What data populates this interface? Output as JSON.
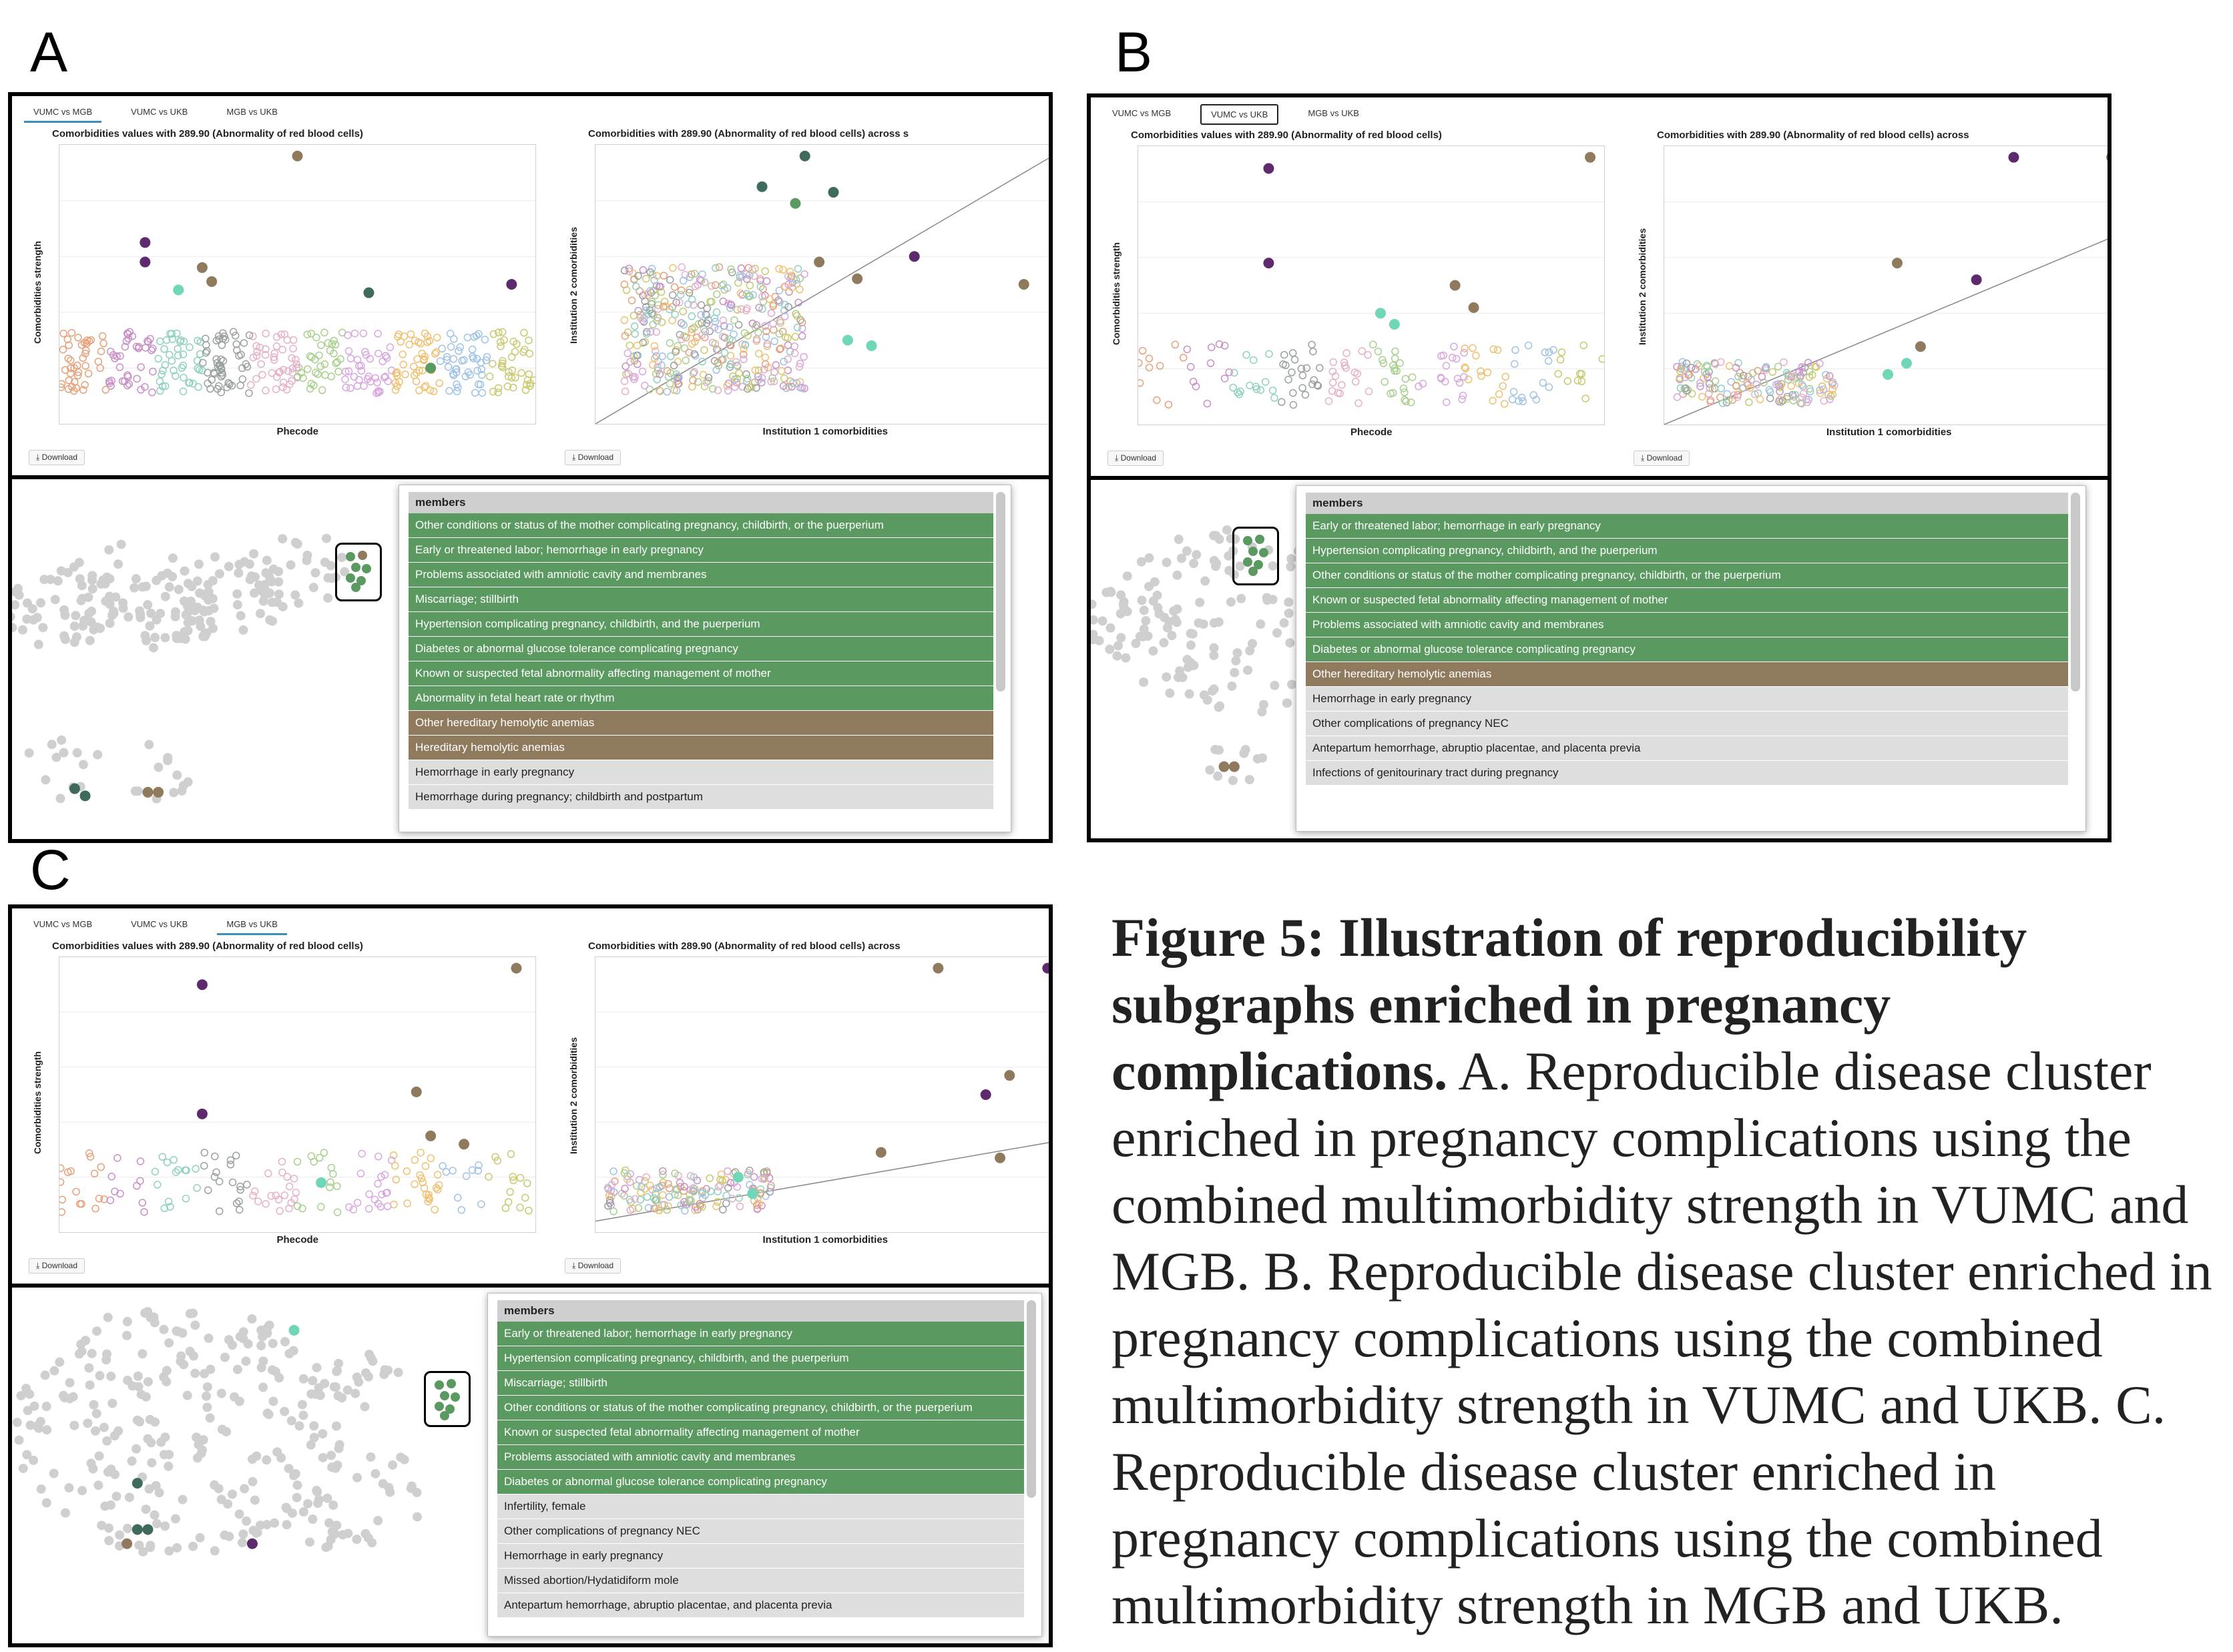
{
  "labels": {
    "a": "A",
    "b": "B",
    "c": "C"
  },
  "download_label": "Download",
  "panels": {
    "a": {
      "tabs": [
        "VUMC vs MGB",
        "VUMC vs UKB",
        "MGB vs UKB"
      ],
      "active_tab": 0,
      "left_title": "Comorbidities values with 289.90 (Abnormality of red blood cells)",
      "right_title": "Comorbidities with 289.90 (Abnormality of red blood cells) across s",
      "left_xlabel": "Phecode",
      "left_ylabel": "Comorbidities strength",
      "right_xlabel": "Institution 1 comorbidities",
      "right_ylabel": "Institution 2 comorbidities",
      "members_header": "members",
      "members": [
        {
          "text": "Other conditions or status of the mother complicating pregnancy, childbirth, or the puerperium",
          "color": "green"
        },
        {
          "text": "Early or threatened labor; hemorrhage in early pregnancy",
          "color": "green"
        },
        {
          "text": "Problems associated with amniotic cavity and membranes",
          "color": "green"
        },
        {
          "text": "Miscarriage; stillbirth",
          "color": "green"
        },
        {
          "text": "Hypertension complicating pregnancy, childbirth, and the puerperium",
          "color": "green"
        },
        {
          "text": "Diabetes or abnormal glucose tolerance complicating pregnancy",
          "color": "green"
        },
        {
          "text": "Known or suspected fetal abnormality affecting management of mother",
          "color": "green"
        },
        {
          "text": "Abnormality in fetal heart rate or rhythm",
          "color": "green"
        },
        {
          "text": "Other hereditary hemolytic anemias",
          "color": "brown"
        },
        {
          "text": "Hereditary hemolytic anemias",
          "color": "brown"
        },
        {
          "text": "Hemorrhage in early pregnancy",
          "color": "gray"
        },
        {
          "text": "Hemorrhage during pregnancy; childbirth and postpartum",
          "color": "gray"
        }
      ]
    },
    "b": {
      "tabs": [
        "VUMC vs MGB",
        "VUMC vs UKB",
        "MGB vs UKB"
      ],
      "active_tab": 1,
      "left_title": "Comorbidities values with 289.90 (Abnormality of red blood cells)",
      "right_title": "Comorbidities with 289.90 (Abnormality of red blood cells) across",
      "left_xlabel": "Phecode",
      "left_ylabel": "Comorbidities strength",
      "right_xlabel": "Institution 1 comorbidities",
      "right_ylabel": "Institution 2 comorbidities",
      "members_header": "members",
      "members": [
        {
          "text": "Early or threatened labor; hemorrhage in early pregnancy",
          "color": "green"
        },
        {
          "text": "Hypertension complicating pregnancy, childbirth, and the puerperium",
          "color": "green"
        },
        {
          "text": "Other conditions or status of the mother complicating pregnancy, childbirth, or the puerperium",
          "color": "green"
        },
        {
          "text": "Known or suspected fetal abnormality affecting management of mother",
          "color": "green"
        },
        {
          "text": "Problems associated with amniotic cavity and membranes",
          "color": "green"
        },
        {
          "text": "Diabetes or abnormal glucose tolerance complicating pregnancy",
          "color": "green"
        },
        {
          "text": "Other hereditary hemolytic anemias",
          "color": "brown"
        },
        {
          "text": "Hemorrhage in early pregnancy",
          "color": "gray"
        },
        {
          "text": "Other complications of pregnancy NEC",
          "color": "gray"
        },
        {
          "text": "Antepartum hemorrhage, abruptio placentae, and placenta previa",
          "color": "gray"
        },
        {
          "text": "Infections of genitourinary tract during pregnancy",
          "color": "gray"
        }
      ]
    },
    "c": {
      "tabs": [
        "VUMC vs MGB",
        "VUMC vs UKB",
        "MGB vs UKB"
      ],
      "active_tab": 2,
      "left_title": "Comorbidities values with 289.90 (Abnormality of red blood cells)",
      "right_title": "Comorbidities with 289.90 (Abnormality of red blood cells) across",
      "left_xlabel": "Phecode",
      "left_ylabel": "Comorbidities strength",
      "right_xlabel": "Institution 1 comorbidities",
      "right_ylabel": "Institution 2 comorbidities",
      "members_header": "members",
      "members": [
        {
          "text": "Early or threatened labor; hemorrhage in early pregnancy",
          "color": "green"
        },
        {
          "text": "Hypertension complicating pregnancy, childbirth, and the puerperium",
          "color": "green"
        },
        {
          "text": "Miscarriage; stillbirth",
          "color": "green"
        },
        {
          "text": "Other conditions or status of the mother complicating pregnancy, childbirth, or the puerperium",
          "color": "green"
        },
        {
          "text": "Known or suspected fetal abnormality affecting management of mother",
          "color": "green"
        },
        {
          "text": "Problems associated with amniotic cavity and membranes",
          "color": "green"
        },
        {
          "text": "Diabetes or abnormal glucose tolerance complicating pregnancy",
          "color": "green"
        },
        {
          "text": "Infertility, female",
          "color": "gray"
        },
        {
          "text": "Other complications of pregnancy NEC",
          "color": "gray"
        },
        {
          "text": "Hemorrhage in early pregnancy",
          "color": "gray"
        },
        {
          "text": "Missed abortion/Hydatidiform mole",
          "color": "gray"
        },
        {
          "text": "Antepartum hemorrhage, abruptio placentae, and placenta previa",
          "color": "gray"
        }
      ]
    }
  },
  "caption": {
    "bold": "Figure 5: Illustration of reproducibility subgraphs enriched in pregnancy complications.",
    "text": "A. Reproducible disease cluster enriched in pregnancy complications using the combined multimorbidity strength in VUMC and MGB. B. Reproducible disease cluster enriched in pregnancy complications using the combined multimorbidity strength in VUMC and UKB. C. Reproducible disease cluster enriched in pregnancy complications using the combined multimorbidity strength in MGB and UKB."
  },
  "colors": {
    "green": "#5a9a61",
    "brown": "#8f7a5e",
    "purple": "#5e2a6e",
    "teal": "#3f6b5e",
    "mint": "#6fd6b8",
    "node": "#cfcfcf"
  }
}
